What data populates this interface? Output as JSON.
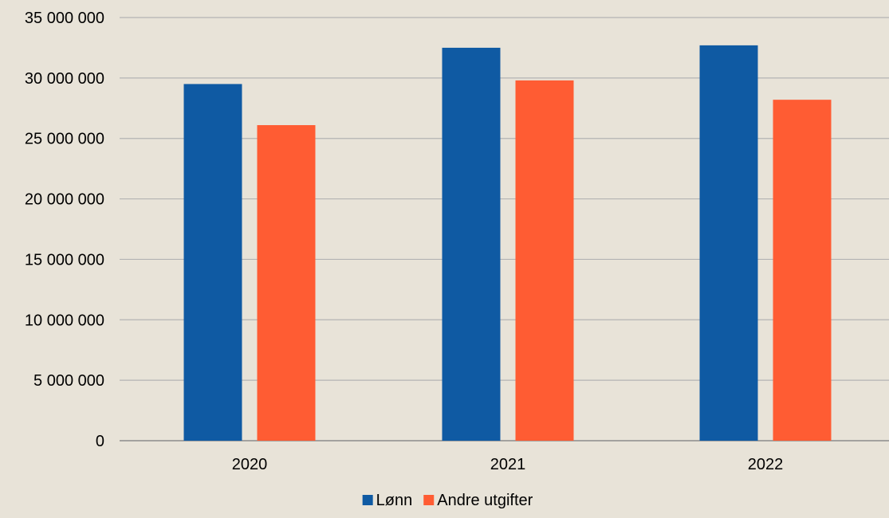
{
  "chart_data": {
    "type": "bar",
    "categories": [
      "2020",
      "2021",
      "2022"
    ],
    "series": [
      {
        "name": "Lønn",
        "color": "#0f5aa3",
        "values": [
          29500000,
          32500000,
          32700000
        ]
      },
      {
        "name": "Andre utgifter",
        "color": "#ff5c33",
        "values": [
          26100000,
          29800000,
          28200000
        ]
      }
    ],
    "ylim": [
      0,
      35000000
    ],
    "yticks": [
      0,
      5000000,
      10000000,
      15000000,
      20000000,
      25000000,
      30000000,
      35000000
    ],
    "ytick_labels": [
      "0",
      "5 000 000",
      "10 000 000",
      "15 000 000",
      "20 000 000",
      "25 000 000",
      "30 000 000",
      "35 000 000"
    ],
    "grid": true,
    "legend_position": "bottom",
    "background_color": "#e8e3d8",
    "grid_color": "#b3b3b3",
    "axis_color": "#8c8c8c"
  }
}
